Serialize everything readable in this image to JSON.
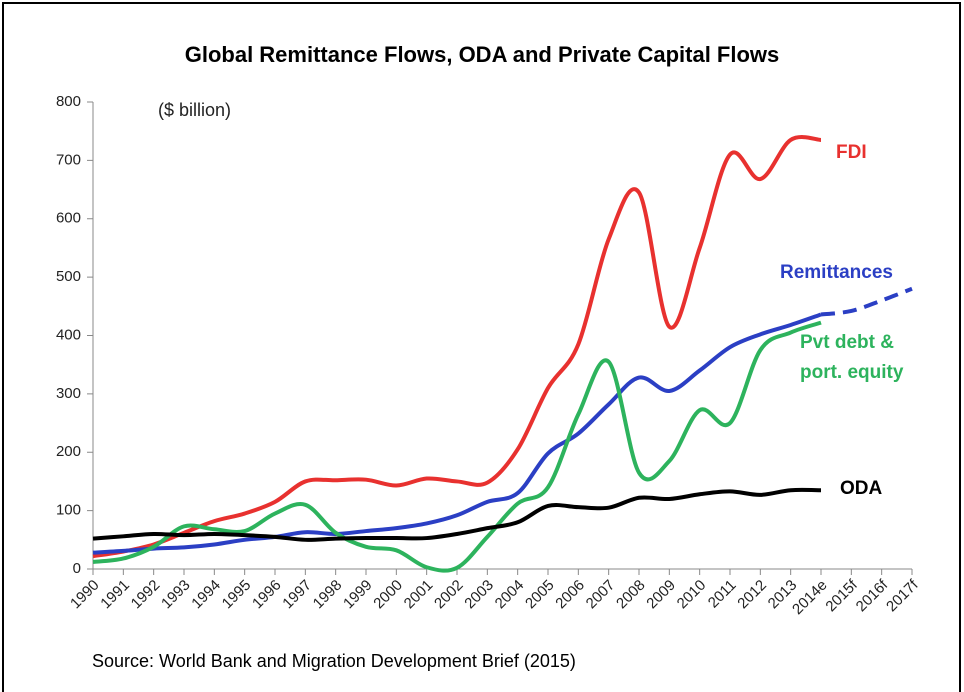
{
  "chart_data": {
    "type": "line",
    "title": "Global Remittance Flows, ODA and Private Capital Flows",
    "subtitle": "($ billion)",
    "source": "Source: World Bank and Migration Development Brief (2015)",
    "categories": [
      "1990",
      "1991",
      "1992",
      "1993",
      "1994",
      "1995",
      "1996",
      "1997",
      "1998",
      "1999",
      "2000",
      "2001",
      "2002",
      "2003",
      "2004",
      "2005",
      "2006",
      "2007",
      "2008",
      "2009",
      "2010",
      "2011",
      "2012",
      "2013",
      "2014e",
      "2015f",
      "2016f",
      "2017f"
    ],
    "ylim": [
      0,
      800
    ],
    "yticks": [
      0,
      100,
      200,
      300,
      400,
      500,
      600,
      700,
      800
    ],
    "dashed_from": "2014e",
    "series": [
      {
        "name": "FDI",
        "color": "#e8312f",
        "values": [
          22,
          30,
          42,
          62,
          82,
          95,
          115,
          150,
          152,
          153,
          143,
          155,
          150,
          148,
          205,
          310,
          385,
          565,
          645,
          415,
          550,
          710,
          668,
          735,
          735,
          null,
          null,
          null
        ]
      },
      {
        "name": "Remittances",
        "color": "#2b3fc4",
        "values": [
          28,
          31,
          35,
          37,
          42,
          50,
          55,
          63,
          60,
          65,
          70,
          78,
          92,
          115,
          130,
          198,
          232,
          282,
          328,
          305,
          340,
          380,
          402,
          418,
          436,
          442,
          460,
          480
        ]
      },
      {
        "name": "Pvt debt & port. equity",
        "color": "#2db35d",
        "values": [
          12,
          18,
          38,
          73,
          68,
          65,
          95,
          110,
          62,
          38,
          32,
          3,
          2,
          55,
          112,
          140,
          265,
          355,
          165,
          185,
          272,
          250,
          375,
          405,
          422,
          null,
          null,
          null
        ]
      },
      {
        "name": "ODA",
        "color": "#000000",
        "values": [
          52,
          56,
          60,
          58,
          60,
          58,
          55,
          50,
          52,
          53,
          53,
          53,
          60,
          70,
          80,
          108,
          106,
          105,
          122,
          120,
          128,
          133,
          127,
          135,
          135,
          null,
          null,
          null
        ]
      }
    ]
  }
}
